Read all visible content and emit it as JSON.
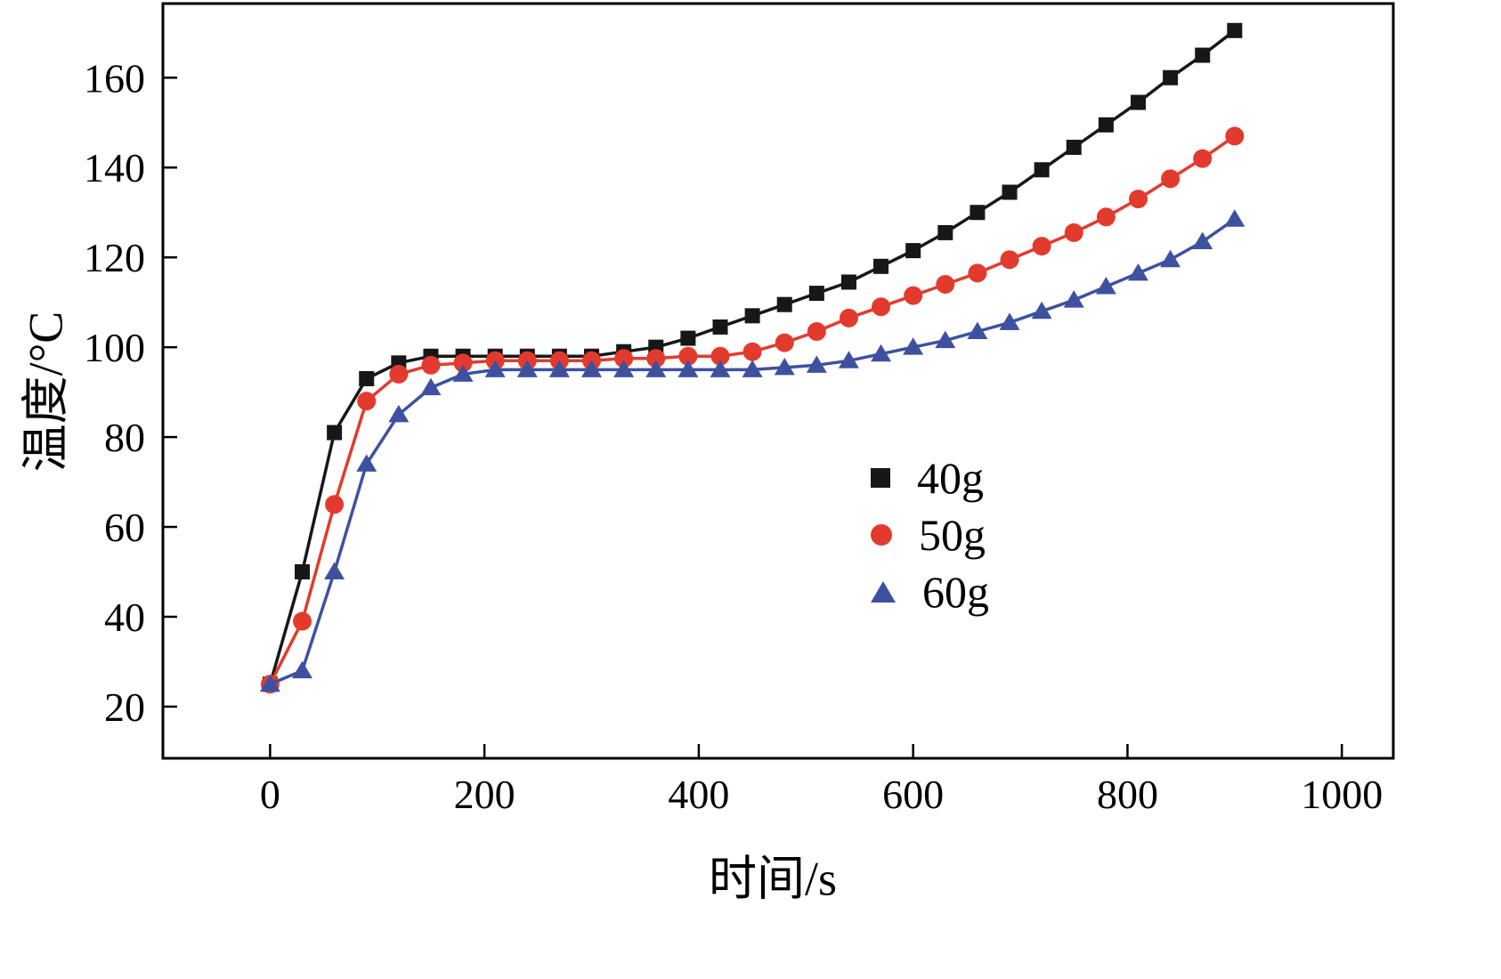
{
  "figure": {
    "background": "#ffffff",
    "frame_color": "#000000"
  },
  "chart_data": {
    "type": "line",
    "title": "",
    "xlabel": "时间/s",
    "ylabel": "温度/°C",
    "xlim": [
      -100,
      1048
    ],
    "ylim": [
      8.5,
      176.5
    ],
    "xticks": [
      0,
      200,
      400,
      600,
      800,
      1000
    ],
    "yticks": [
      20,
      40,
      60,
      80,
      100,
      120,
      140,
      160
    ],
    "grid": false,
    "legend_position": "center-right",
    "x": [
      0,
      30,
      60,
      90,
      120,
      150,
      180,
      210,
      240,
      270,
      300,
      330,
      360,
      390,
      420,
      450,
      480,
      510,
      540,
      570,
      600,
      630,
      660,
      690,
      720,
      750,
      780,
      810,
      840,
      870,
      900
    ],
    "series": [
      {
        "name": "40g",
        "color": "#171717",
        "marker": "square",
        "values": [
          25,
          50,
          81,
          93,
          96.5,
          98,
          98,
          98,
          98,
          98,
          98,
          99,
          100,
          102,
          104.5,
          107,
          109.5,
          112,
          114.5,
          118,
          121.5,
          125.5,
          130,
          134.5,
          139.5,
          144.5,
          149.5,
          154.5,
          160,
          165,
          170.5
        ]
      },
      {
        "name": "50g",
        "color": "#e23b2d",
        "marker": "circle",
        "values": [
          25,
          39,
          65,
          88,
          94,
          96,
          96.5,
          97,
          97,
          97,
          97,
          97.5,
          97.5,
          98,
          98,
          99,
          101,
          103.5,
          106.5,
          109,
          111.5,
          114,
          116.5,
          119.5,
          122.5,
          125.5,
          129,
          133,
          137.5,
          142,
          147
        ]
      },
      {
        "name": "60g",
        "color": "#3e51a1",
        "marker": "triangle",
        "values": [
          25,
          28,
          50,
          74,
          85,
          91,
          94,
          95,
          95,
          95,
          95,
          95,
          95,
          95,
          95,
          95,
          95.5,
          96,
          97,
          98.5,
          100,
          101.5,
          103.5,
          105.5,
          108,
          110.5,
          113.5,
          116.5,
          119.5,
          123.5,
          128.5
        ]
      }
    ]
  }
}
